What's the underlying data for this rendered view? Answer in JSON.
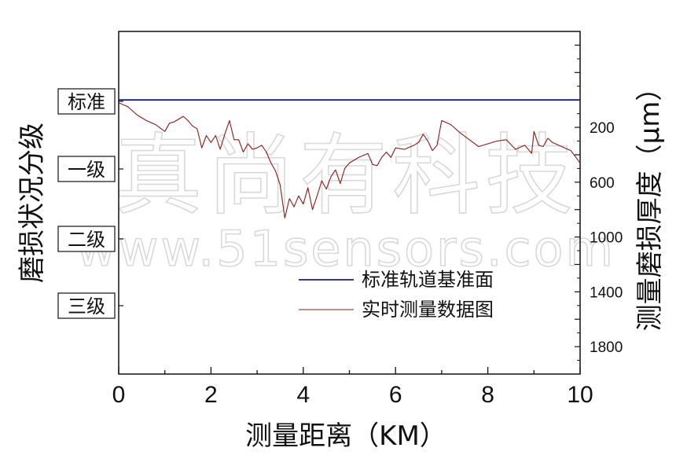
{
  "chart_data": {
    "type": "line",
    "xlabel": "测量距离（KM）",
    "ylabel_left": "磨损状况分级",
    "ylabel_right": "测量磨损厚度（μm）",
    "xlim": [
      0,
      10
    ],
    "x_ticks": [
      "0",
      "2",
      "4",
      "6",
      "8",
      "10"
    ],
    "right_ylim": [
      -500,
      2000
    ],
    "right_y_ticks": [
      "200",
      "600",
      "1000",
      "1400",
      "1800"
    ],
    "grade_labels": [
      "标准",
      "一级",
      "二级",
      "三级"
    ],
    "series": [
      {
        "name": "标准轨道基准面",
        "color": "#1a1a7a",
        "x": [
          0,
          10
        ],
        "y": [
          0,
          0
        ]
      },
      {
        "name": "实时测量数据图",
        "color": "#8b1a1a",
        "x": [
          0,
          0.2,
          0.4,
          0.6,
          0.8,
          1.0,
          1.1,
          1.2,
          1.4,
          1.5,
          1.6,
          1.7,
          1.8,
          1.9,
          2.0,
          2.1,
          2.2,
          2.3,
          2.4,
          2.5,
          2.6,
          2.7,
          2.8,
          2.9,
          3.0,
          3.1,
          3.2,
          3.3,
          3.4,
          3.5,
          3.6,
          3.7,
          3.8,
          3.9,
          4.0,
          4.1,
          4.2,
          4.3,
          4.4,
          4.5,
          4.6,
          4.7,
          4.8,
          4.9,
          5.0,
          5.2,
          5.4,
          5.5,
          5.6,
          5.7,
          5.8,
          5.9,
          6.0,
          6.2,
          6.4,
          6.5,
          6.6,
          6.7,
          6.8,
          6.9,
          7.0,
          7.2,
          7.4,
          7.6,
          7.8,
          8.0,
          8.2,
          8.4,
          8.6,
          8.8,
          8.95,
          9.0,
          9.1,
          9.2,
          9.3,
          9.4,
          9.6,
          9.8,
          10.0
        ],
        "y": [
          20,
          50,
          110,
          150,
          180,
          230,
          170,
          160,
          120,
          150,
          190,
          210,
          350,
          260,
          310,
          260,
          360,
          250,
          150,
          290,
          290,
          380,
          320,
          360,
          350,
          330,
          380,
          460,
          520,
          620,
          860,
          720,
          780,
          700,
          760,
          640,
          800,
          700,
          590,
          650,
          560,
          510,
          610,
          500,
          460,
          420,
          390,
          470,
          480,
          420,
          380,
          420,
          350,
          360,
          330,
          310,
          250,
          300,
          370,
          330,
          150,
          180,
          240,
          290,
          340,
          320,
          300,
          290,
          360,
          330,
          390,
          230,
          330,
          340,
          280,
          310,
          340,
          370,
          460
        ]
      }
    ],
    "legend_position": "bottom-right"
  },
  "watermark": {
    "text_cn": "真尚有科技",
    "text_url": "www.51sensors.com"
  }
}
